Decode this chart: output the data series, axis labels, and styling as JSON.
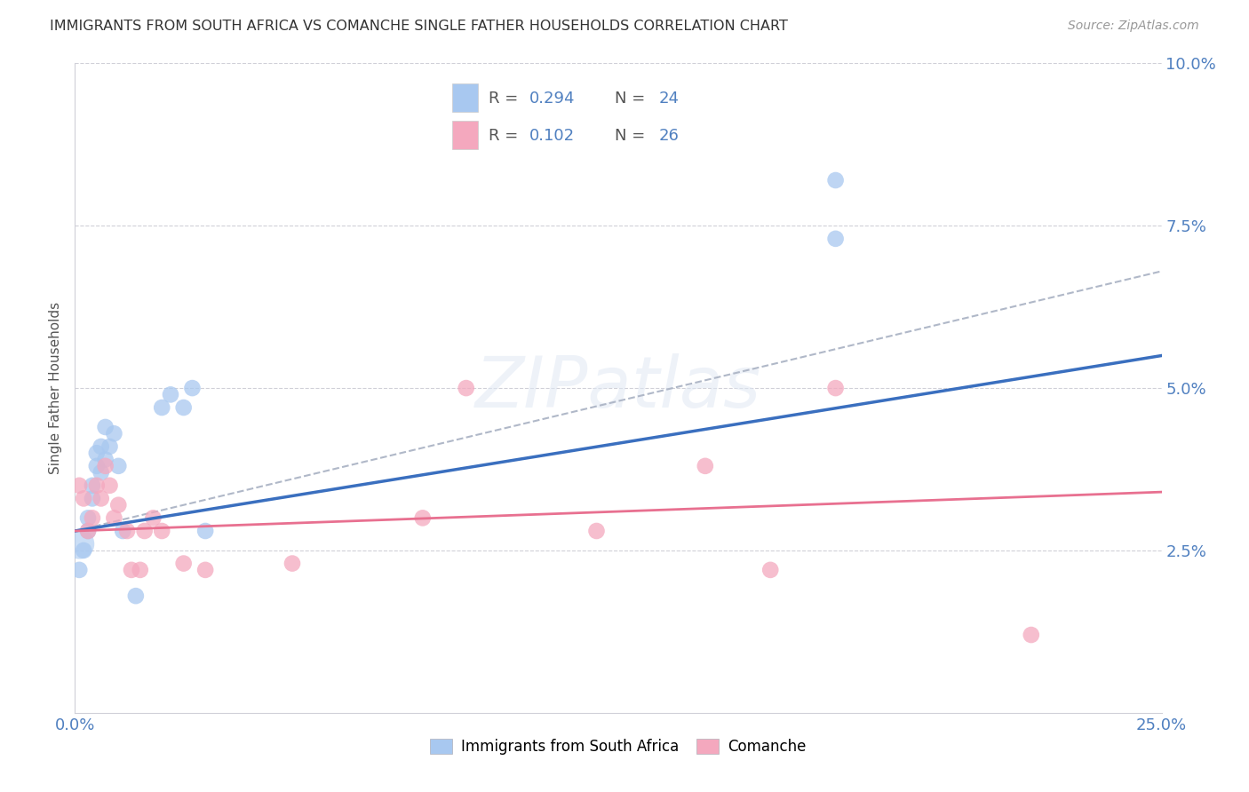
{
  "title": "IMMIGRANTS FROM SOUTH AFRICA VS COMANCHE SINGLE FATHER HOUSEHOLDS CORRELATION CHART",
  "source": "Source: ZipAtlas.com",
  "ylabel": "Single Father Households",
  "xlim": [
    0.0,
    0.25
  ],
  "ylim": [
    0.0,
    0.1
  ],
  "blue_color": "#a8c8f0",
  "pink_color": "#f4a8be",
  "trendline_blue": "#3a6fbf",
  "trendline_pink": "#e87090",
  "trendline_dashed_color": "#b0b8c8",
  "legend_R1": "0.294",
  "legend_N1": "24",
  "legend_R2": "0.102",
  "legend_N2": "26",
  "blue_scatter": [
    [
      0.001,
      0.022
    ],
    [
      0.002,
      0.025
    ],
    [
      0.003,
      0.028
    ],
    [
      0.003,
      0.03
    ],
    [
      0.004,
      0.033
    ],
    [
      0.004,
      0.035
    ],
    [
      0.005,
      0.038
    ],
    [
      0.005,
      0.04
    ],
    [
      0.006,
      0.037
    ],
    [
      0.006,
      0.041
    ],
    [
      0.007,
      0.039
    ],
    [
      0.007,
      0.044
    ],
    [
      0.008,
      0.041
    ],
    [
      0.009,
      0.043
    ],
    [
      0.01,
      0.038
    ],
    [
      0.011,
      0.028
    ],
    [
      0.014,
      0.018
    ],
    [
      0.02,
      0.047
    ],
    [
      0.022,
      0.049
    ],
    [
      0.025,
      0.047
    ],
    [
      0.027,
      0.05
    ],
    [
      0.03,
      0.028
    ],
    [
      0.175,
      0.082
    ],
    [
      0.175,
      0.073
    ]
  ],
  "pink_scatter": [
    [
      0.001,
      0.035
    ],
    [
      0.002,
      0.033
    ],
    [
      0.003,
      0.028
    ],
    [
      0.004,
      0.03
    ],
    [
      0.005,
      0.035
    ],
    [
      0.006,
      0.033
    ],
    [
      0.007,
      0.038
    ],
    [
      0.008,
      0.035
    ],
    [
      0.009,
      0.03
    ],
    [
      0.01,
      0.032
    ],
    [
      0.012,
      0.028
    ],
    [
      0.013,
      0.022
    ],
    [
      0.015,
      0.022
    ],
    [
      0.016,
      0.028
    ],
    [
      0.018,
      0.03
    ],
    [
      0.02,
      0.028
    ],
    [
      0.025,
      0.023
    ],
    [
      0.03,
      0.022
    ],
    [
      0.05,
      0.023
    ],
    [
      0.08,
      0.03
    ],
    [
      0.09,
      0.05
    ],
    [
      0.12,
      0.028
    ],
    [
      0.145,
      0.038
    ],
    [
      0.16,
      0.022
    ],
    [
      0.175,
      0.05
    ],
    [
      0.22,
      0.012
    ]
  ],
  "legend_labels": [
    "Immigrants from South Africa",
    "Comanche"
  ]
}
